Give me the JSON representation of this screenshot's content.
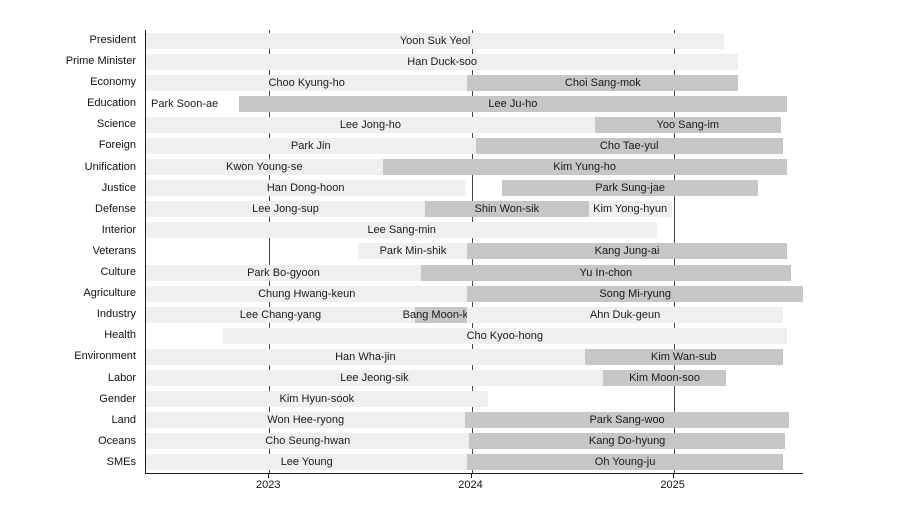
{
  "chart_data": {
    "type": "bar",
    "subtype": "gantt-timeline",
    "title": "",
    "xlabel": "",
    "ylabel": "",
    "legend": "none",
    "grid": "vertical-solid-behind-bars",
    "axis": {
      "min": 2022.39,
      "max": 2025.64,
      "ticks": [
        {
          "value": 2023,
          "label": "2023"
        },
        {
          "value": 2024,
          "label": "2024"
        },
        {
          "value": 2025,
          "label": "2025"
        }
      ]
    },
    "rows": [
      {
        "label": "President",
        "bars": [
          {
            "name": "Yoon Suk Yeol",
            "start": 2022.39,
            "end": 2025.25,
            "shade": "light"
          }
        ]
      },
      {
        "label": "Prime Minister",
        "bars": [
          {
            "name": "Han Duck-soo",
            "start": 2022.39,
            "end": 2025.32,
            "shade": "light"
          }
        ]
      },
      {
        "label": "Economy",
        "bars": [
          {
            "name": "Choo Kyung-ho",
            "start": 2022.39,
            "end": 2023.98,
            "shade": "light"
          },
          {
            "name": "Choi Sang-mok",
            "start": 2023.98,
            "end": 2025.32,
            "shade": "dark"
          }
        ]
      },
      {
        "label": "Education",
        "bars": [
          {
            "name": "Park Soon-ae",
            "start": 2022.39,
            "end": 2022.85,
            "shade": "none",
            "align": "left"
          },
          {
            "name": "Lee Ju-ho",
            "start": 2022.85,
            "end": 2025.56,
            "shade": "dark"
          }
        ]
      },
      {
        "label": "Science",
        "bars": [
          {
            "name": "Lee Jong-ho",
            "start": 2022.39,
            "end": 2024.61,
            "shade": "light"
          },
          {
            "name": "Yoo Sang-im",
            "start": 2024.61,
            "end": 2025.53,
            "shade": "dark"
          }
        ]
      },
      {
        "label": "Foreign",
        "bars": [
          {
            "name": "Park Jin",
            "start": 2022.39,
            "end": 2024.02,
            "shade": "light"
          },
          {
            "name": "Cho Tae-yul",
            "start": 2024.02,
            "end": 2025.54,
            "shade": "dark"
          }
        ]
      },
      {
        "label": "Unification",
        "bars": [
          {
            "name": "Kwon Young-se",
            "start": 2022.39,
            "end": 2023.56,
            "shade": "light"
          },
          {
            "name": "Kim Yung-ho",
            "start": 2023.56,
            "end": 2025.56,
            "shade": "dark"
          }
        ]
      },
      {
        "label": "Justice",
        "bars": [
          {
            "name": "Han Dong-hoon",
            "start": 2022.39,
            "end": 2023.97,
            "shade": "light"
          },
          {
            "name": "Park Sung-jae",
            "start": 2024.15,
            "end": 2025.42,
            "shade": "dark"
          }
        ]
      },
      {
        "label": "Defense",
        "bars": [
          {
            "name": "Lee Jong-sup",
            "start": 2022.39,
            "end": 2023.77,
            "shade": "light"
          },
          {
            "name": "Shin Won-sik",
            "start": 2023.77,
            "end": 2024.58,
            "shade": "dark"
          },
          {
            "name": "Kim Yong-hyun",
            "start": 2024.58,
            "end": 2024.99,
            "shade": "light"
          }
        ]
      },
      {
        "label": "Interior",
        "bars": [
          {
            "name": "Lee Sang-min",
            "start": 2022.39,
            "end": 2024.92,
            "shade": "light"
          }
        ]
      },
      {
        "label": "Veterans",
        "bars": [
          {
            "name": "Park Min-shik",
            "start": 2023.44,
            "end": 2023.98,
            "shade": "light"
          },
          {
            "name": "Kang Jung-ai",
            "start": 2023.98,
            "end": 2025.56,
            "shade": "dark"
          }
        ]
      },
      {
        "label": "Culture",
        "bars": [
          {
            "name": "Park Bo-gyoon",
            "start": 2022.39,
            "end": 2023.75,
            "shade": "light"
          },
          {
            "name": "Yu In-chon",
            "start": 2023.75,
            "end": 2025.58,
            "shade": "dark"
          }
        ]
      },
      {
        "label": "Agriculture",
        "bars": [
          {
            "name": "Chung Hwang-keun",
            "start": 2022.39,
            "end": 2023.98,
            "shade": "light"
          },
          {
            "name": "Song Mi-ryung",
            "start": 2023.98,
            "end": 2025.64,
            "shade": "dark"
          }
        ]
      },
      {
        "label": "Industry",
        "bars": [
          {
            "name": "Lee Chang-yang",
            "start": 2022.39,
            "end": 2023.72,
            "shade": "light"
          },
          {
            "name": "Bang Moon-kyu",
            "start": 2023.72,
            "end": 2023.98,
            "shade": "dark"
          },
          {
            "name": "Ahn Duk-geun",
            "start": 2023.98,
            "end": 2025.54,
            "shade": "light"
          }
        ]
      },
      {
        "label": "Health",
        "bars": [
          {
            "name": "Cho Kyoo-hong",
            "start": 2022.77,
            "end": 2025.56,
            "shade": "light"
          }
        ]
      },
      {
        "label": "Environment",
        "bars": [
          {
            "name": "Han Wha-jin",
            "start": 2022.39,
            "end": 2024.56,
            "shade": "light"
          },
          {
            "name": "Kim Wan-sub",
            "start": 2024.56,
            "end": 2025.54,
            "shade": "dark"
          }
        ]
      },
      {
        "label": "Labor",
        "bars": [
          {
            "name": "Lee Jeong-sik",
            "start": 2022.39,
            "end": 2024.65,
            "shade": "light"
          },
          {
            "name": "Kim Moon-soo",
            "start": 2024.65,
            "end": 2025.26,
            "shade": "dark"
          }
        ]
      },
      {
        "label": "Gender",
        "bars": [
          {
            "name": "Kim Hyun-sook",
            "start": 2022.39,
            "end": 2024.08,
            "shade": "light"
          }
        ]
      },
      {
        "label": "Land",
        "bars": [
          {
            "name": "Won Hee-ryong",
            "start": 2022.39,
            "end": 2023.97,
            "shade": "light"
          },
          {
            "name": "Park Sang-woo",
            "start": 2023.97,
            "end": 2025.57,
            "shade": "dark"
          }
        ]
      },
      {
        "label": "Oceans",
        "bars": [
          {
            "name": "Cho Seung-hwan",
            "start": 2022.39,
            "end": 2023.99,
            "shade": "light"
          },
          {
            "name": "Kang Do-hyung",
            "start": 2023.99,
            "end": 2025.55,
            "shade": "dark"
          }
        ]
      },
      {
        "label": "SMEs",
        "bars": [
          {
            "name": "Lee Young",
            "start": 2022.39,
            "end": 2023.98,
            "shade": "light"
          },
          {
            "name": "Oh Young-ju",
            "start": 2023.98,
            "end": 2025.54,
            "shade": "dark"
          }
        ]
      }
    ]
  },
  "colors": {
    "background": "#ffffff",
    "bar_light": "#efefef",
    "bar_dark": "#c6c6c6",
    "gridline": "#454545",
    "axis": "#1a1a1a",
    "text": "#111111"
  }
}
